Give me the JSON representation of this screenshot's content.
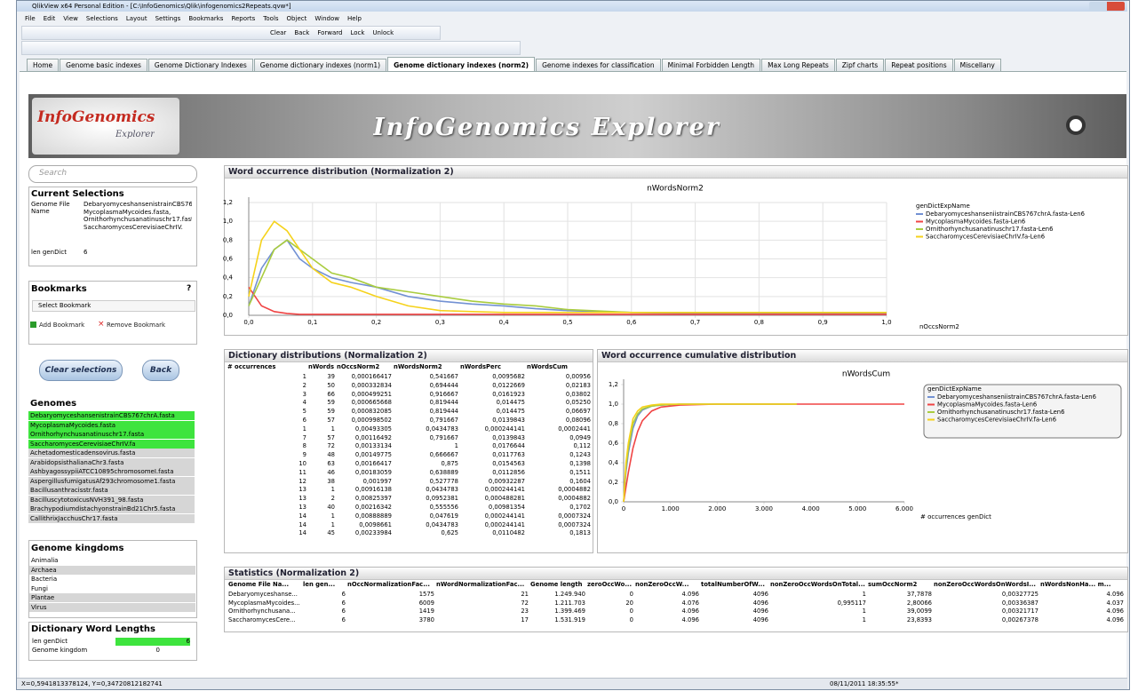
{
  "window": {
    "title": "QlikView x64 Personal Edition - [C:\\InfoGenomics\\Qlik\\infogenomics2Repeats.qvw*]",
    "status_coords": "X=0,5941813378124, Y=0,34720812182741",
    "status_time": "08/11/2011 18:35:55*"
  },
  "menu": [
    "File",
    "Edit",
    "View",
    "Selections",
    "Layout",
    "Settings",
    "Bookmarks",
    "Reports",
    "Tools",
    "Object",
    "Window",
    "Help"
  ],
  "toolbar": [
    "Clear",
    "Back",
    "Forward",
    "Lock",
    "Unlock"
  ],
  "tabs": [
    "Home",
    "Genome basic indexes",
    "Genome Dictionary Indexes",
    "Genome dictionary indexes (norm1)",
    "Genome dictionary indexes (norm2)",
    "Genome indexes for classification",
    "Minimal Forbidden Length",
    "Max Long Repeats",
    "Zipf charts",
    "Repeat positions",
    "Miscellany"
  ],
  "active_tab": 4,
  "banner": {
    "logo": "InfoGenomics",
    "logo_sub": "Explorer",
    "title": "InfoGenomics Explorer"
  },
  "search": "Search",
  "current_selections": {
    "title": "Current Selections",
    "fields": [
      {
        "name": "Genome File Name",
        "value": "DebaryomyceshansenistrainCBS767chrA.fasta, MycoplasmaMycoides.fasta, Ornithorhynchusanatinuschr17.fasta, SaccharomycesCerevisiaeChrIV."
      },
      {
        "name": "len genDict",
        "value": "6"
      }
    ]
  },
  "bookmarks": {
    "title": "Bookmarks",
    "help": "?",
    "select": "Select Bookmark",
    "add": "Add Bookmark",
    "remove": "Remove Bookmark"
  },
  "buttons": [
    "Clear selections",
    "Back"
  ],
  "genomes": {
    "title": "Genomes",
    "items": [
      {
        "name": "DebaryomyceshansenistrainCBS767chrA.fasta",
        "selected": true
      },
      {
        "name": "MycoplasmaMycoides.fasta",
        "selected": true
      },
      {
        "name": "Ornithorhynchusanatinuschr17.fasta",
        "selected": true
      },
      {
        "name": "SaccharomycesCerevisiaeChrIV.fa",
        "selected": true
      },
      {
        "name": "Achetadomesticadensovirus.fasta",
        "selected": false
      },
      {
        "name": "ArabidopsisthalianaChr3.fasta",
        "selected": false
      },
      {
        "name": "AshbyagossypiiATCC10895chromosomeI.fasta",
        "selected": false
      },
      {
        "name": "AspergillusfumigatusAf293chromosome1.fasta",
        "selected": false
      },
      {
        "name": "Bacillusanthracisstr.fasta",
        "selected": false
      },
      {
        "name": "BacilluscytotoxicusNVH391_98.fasta",
        "selected": false
      },
      {
        "name": "BrachypodiumdistachyonstrainBd21Chr5.fasta",
        "selected": false
      },
      {
        "name": "CallithrixJacchusChr17.fasta",
        "selected": false
      }
    ]
  },
  "kingdoms": {
    "title": "Genome kingdoms",
    "items": [
      {
        "name": "Animalia",
        "excluded": false
      },
      {
        "name": "Archaea",
        "excluded": true
      },
      {
        "name": "Bacteria",
        "excluded": false
      },
      {
        "name": "Fungi",
        "excluded": false
      },
      {
        "name": "Plantae",
        "excluded": true
      },
      {
        "name": "Virus",
        "excluded": true
      }
    ]
  },
  "word_lengths": {
    "title": "Dictionary Word Lengths",
    "rows": [
      {
        "name": "len genDict",
        "value": "6"
      },
      {
        "name": "Genome kingdom",
        "value": "0"
      }
    ]
  },
  "dict_table": {
    "title": "Dictionary distributions (Normalization 2)",
    "columns": [
      "# occurrences",
      "nWords",
      "nOccsNorm2",
      "nWordsNorm2",
      "nWordsPerc",
      "nWordsCum"
    ],
    "rows": [
      [
        "1",
        "39",
        "0,000166417",
        "0,541667",
        "0,0095682",
        "0,00956"
      ],
      [
        "2",
        "50",
        "0,000332834",
        "0,694444",
        "0,0122669",
        "0,02183"
      ],
      [
        "3",
        "66",
        "0,000499251",
        "0,916667",
        "0,0161923",
        "0,03802"
      ],
      [
        "4",
        "59",
        "0,000665668",
        "0,819444",
        "0,014475",
        "0,05250"
      ],
      [
        "5",
        "59",
        "0,000832085",
        "0,819444",
        "0,014475",
        "0,06697"
      ],
      [
        "6",
        "57",
        "0,000998502",
        "0,791667",
        "0,0139843",
        "0,08096"
      ],
      [
        "1",
        "1",
        "0,00493305",
        "0,0434783",
        "0,000244141",
        "0,0002441"
      ],
      [
        "7",
        "57",
        "0,00116492",
        "0,791667",
        "0,0139843",
        "0,0949"
      ],
      [
        "8",
        "72",
        "0,00133134",
        "1",
        "0,0176644",
        "0,112"
      ],
      [
        "9",
        "48",
        "0,00149775",
        "0,666667",
        "0,0117763",
        "0,1243"
      ],
      [
        "10",
        "63",
        "0,00166417",
        "0,875",
        "0,0154563",
        "0,1398"
      ],
      [
        "11",
        "46",
        "0,00183059",
        "0,638889",
        "0,0112856",
        "0,1511"
      ],
      [
        "12",
        "38",
        "0,001997",
        "0,527778",
        "0,00932287",
        "0,1604"
      ],
      [
        "13",
        "1",
        "0,00916138",
        "0,0434783",
        "0,000244141",
        "0,0004882"
      ],
      [
        "13",
        "2",
        "0,00825397",
        "0,0952381",
        "0,000488281",
        "0,0004882"
      ],
      [
        "13",
        "40",
        "0,00216342",
        "0,555556",
        "0,00981354",
        "0,1702"
      ],
      [
        "14",
        "1",
        "0,00888889",
        "0,047619",
        "0,000244141",
        "0,0007324"
      ],
      [
        "14",
        "1",
        "0,0098661",
        "0,0434783",
        "0,000244141",
        "0,0007324"
      ],
      [
        "14",
        "45",
        "0,00233984",
        "0,625",
        "0,0110482",
        "0,1813"
      ]
    ]
  },
  "stats_table": {
    "title": "Statistics (Normalization 2)",
    "columns": [
      "Genome File Na...",
      "len gen...",
      "nOccNormalizationFac...",
      "nWordNormalizationFac...",
      "Genome length",
      "zeroOccWo...",
      "nonZeroOccW...",
      "totalNumberOfW...",
      "nonZeroOccWordsOnTotal...",
      "sumOccNorm2",
      "nonZeroOccWordsOnWordsI...",
      "nWordsNonHa... m..."
    ],
    "rows": [
      [
        "Debaryomyceshanse...",
        "6",
        "1575",
        "21",
        "1.249.940",
        "0",
        "4.096",
        "4096",
        "1",
        "37,7878",
        "0,00327725",
        "4.096"
      ],
      [
        "MycoplasmaMycoides...",
        "6",
        "6009",
        "72",
        "1.211.703",
        "20",
        "4.076",
        "4096",
        "0,995117",
        "2,80066",
        "0,00336387",
        "4.037"
      ],
      [
        "Ornithorhynchusana...",
        "6",
        "1419",
        "23",
        "1.399.469",
        "0",
        "4.096",
        "4096",
        "1",
        "39,0099",
        "0,00321717",
        "4.096"
      ],
      [
        "SaccharomycesCere...",
        "6",
        "3780",
        "17",
        "1.531.919",
        "0",
        "4.096",
        "4096",
        "1",
        "23,8393",
        "0,00267378",
        "4.096"
      ]
    ]
  },
  "chart_data": [
    {
      "type": "line",
      "title": "Word occurrence distribution (Normalization 2)",
      "subtitle": "nWordsNorm2",
      "x_label": "nOccsNorm2",
      "legend_title": "genDictExpName",
      "x": [
        0,
        0.02,
        0.04,
        0.06,
        0.08,
        0.1,
        0.13,
        0.16,
        0.2,
        0.25,
        0.3,
        0.35,
        0.4,
        0.45,
        0.5,
        0.6,
        0.7,
        0.8,
        0.9,
        1.0
      ],
      "series": [
        {
          "name": "DebaryomyceshanseniistrainCBS767chrA.fasta-Len6",
          "color": "#7291d3",
          "values": [
            0.1,
            0.5,
            0.7,
            0.8,
            0.6,
            0.5,
            0.4,
            0.35,
            0.3,
            0.2,
            0.15,
            0.12,
            0.1,
            0.07,
            0.05,
            0.03,
            0.02,
            0.02,
            0.02,
            0.02
          ]
        },
        {
          "name": "MycoplasmaMycoides.fasta-Len6",
          "color": "#f04444",
          "values": [
            0.3,
            0.1,
            0.04,
            0.02,
            0.01,
            0.01,
            0.01,
            0.01,
            0.01,
            0.01,
            0.01,
            0.01,
            0.01,
            0.01,
            0.01,
            0.01,
            0.01,
            0.01,
            0.01,
            0.01
          ]
        },
        {
          "name": "Ornithorhynchusanatinuschr17.fasta-Len6",
          "color": "#a9cc3e",
          "values": [
            0.1,
            0.4,
            0.7,
            0.8,
            0.7,
            0.6,
            0.45,
            0.4,
            0.3,
            0.25,
            0.2,
            0.15,
            0.12,
            0.1,
            0.06,
            0.03,
            0.03,
            0.03,
            0.03,
            0.03
          ]
        },
        {
          "name": "SaccharomycesCerevisiaeChrIV.fa-Len6",
          "color": "#f5d21b",
          "values": [
            0.2,
            0.8,
            1.0,
            0.9,
            0.7,
            0.5,
            0.35,
            0.3,
            0.2,
            0.1,
            0.05,
            0.04,
            0.03,
            0.03,
            0.03,
            0.03,
            0.03,
            0.03,
            0.03,
            0.03
          ]
        }
      ],
      "xlim": [
        0,
        1
      ],
      "ylim": [
        0,
        1.2
      ],
      "xticks": [
        {
          "value": 0,
          "label": "0,0"
        },
        {
          "value": 0.1,
          "label": "0,1"
        },
        {
          "value": 0.2,
          "label": "0,2"
        },
        {
          "value": 0.3,
          "label": "0,3"
        },
        {
          "value": 0.4,
          "label": "0,4"
        },
        {
          "value": 0.5,
          "label": "0,5"
        },
        {
          "value": 0.6,
          "label": "0,6"
        },
        {
          "value": 0.7,
          "label": "0,7"
        },
        {
          "value": 0.8,
          "label": "0,8"
        },
        {
          "value": 0.9,
          "label": "0,9"
        },
        {
          "value": 1,
          "label": "1,0"
        }
      ],
      "yticks": [
        {
          "value": 0,
          "label": "0,0"
        },
        {
          "value": 0.2,
          "label": "0,2"
        },
        {
          "value": 0.4,
          "label": "0,4"
        },
        {
          "value": 0.6,
          "label": "0,6"
        },
        {
          "value": 0.8,
          "label": "0,8"
        },
        {
          "value": 1,
          "label": "1,0"
        },
        {
          "value": 1.2,
          "label": "1,2"
        }
      ],
      "grid": true,
      "legend_box": false
    },
    {
      "type": "line",
      "title": "Word occurrence cumulative distribution",
      "subtitle": "nWordsCum",
      "x_label": "# occurrences genDict",
      "legend_title": "genDictExpName",
      "x": [
        0,
        50,
        100,
        200,
        300,
        400,
        600,
        800,
        1200,
        2000,
        3000,
        3700,
        6000
      ],
      "series": [
        {
          "name": "DebaryomyceshanseniistrainCBS767chrA.fasta-Len6",
          "color": "#7291d3",
          "values": [
            0,
            0.3,
            0.5,
            0.75,
            0.88,
            0.94,
            0.98,
            0.99,
            1,
            1,
            1,
            1,
            null
          ]
        },
        {
          "name": "MycoplasmaMycoides.fasta-Len6",
          "color": "#f04444",
          "values": [
            0,
            0.15,
            0.3,
            0.55,
            0.72,
            0.83,
            0.93,
            0.97,
            0.99,
            1,
            1,
            1,
            1
          ]
        },
        {
          "name": "Ornithorhynchusanatinuschr17.fasta-Len6",
          "color": "#a9cc3e",
          "values": [
            0,
            0.35,
            0.55,
            0.8,
            0.9,
            0.95,
            0.98,
            0.99,
            1,
            1,
            1,
            1,
            null
          ]
        },
        {
          "name": "SaccharomycesCerevisiaeChrIV.fa-Len6",
          "color": "#f5d21b",
          "values": [
            0,
            0.4,
            0.6,
            0.85,
            0.93,
            0.97,
            0.99,
            1,
            1,
            1,
            1,
            1,
            null
          ]
        }
      ],
      "xlim": [
        0,
        6000
      ],
      "ylim": [
        0,
        1.2
      ],
      "xticks": [
        0,
        {
          "value": 1000,
          "label": "1.000"
        },
        {
          "value": 2000,
          "label": "2.000"
        },
        {
          "value": 3000,
          "label": "3.000"
        },
        {
          "value": 4000,
          "label": "4.000"
        },
        {
          "value": 5000,
          "label": "5.000"
        },
        {
          "value": 6000,
          "label": "6.000"
        }
      ],
      "yticks": [
        {
          "value": 0,
          "label": "0,0"
        },
        {
          "value": 0.2,
          "label": "0,2"
        },
        {
          "value": 0.4,
          "label": "0,4"
        },
        {
          "value": 0.6,
          "label": "0,6"
        },
        {
          "value": 0.8,
          "label": "0,8"
        },
        {
          "value": 1,
          "label": "1,0"
        },
        {
          "value": 1.2,
          "label": "1,2"
        }
      ],
      "grid": false,
      "legend_box": true
    }
  ]
}
